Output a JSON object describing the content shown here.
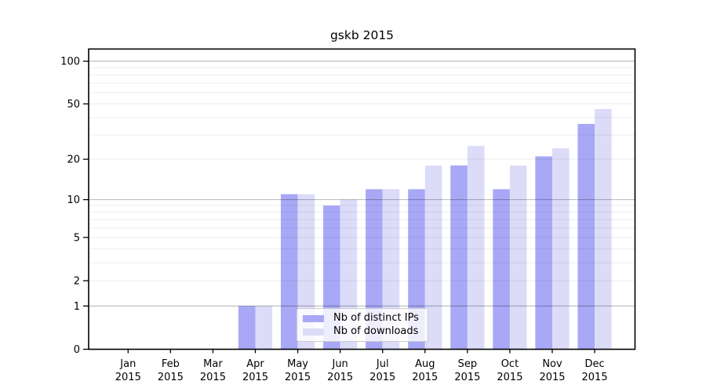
{
  "chart_data": {
    "type": "bar",
    "title": "gskb 2015",
    "categories": [
      "Jan",
      "Feb",
      "Mar",
      "Apr",
      "May",
      "Jun",
      "Jul",
      "Aug",
      "Sep",
      "Oct",
      "Nov",
      "Dec"
    ],
    "year_label": "2015",
    "series": [
      {
        "name": "Nb of distinct IPs",
        "color": "#a8a8f6",
        "values": [
          0,
          0,
          0,
          1,
          11,
          9,
          12,
          12,
          18,
          12,
          21,
          36
        ]
      },
      {
        "name": "Nb of downloads",
        "color": "#dcdcf9",
        "values": [
          0,
          0,
          0,
          1,
          11,
          10,
          12,
          18,
          25,
          18,
          24,
          46
        ]
      }
    ],
    "xlabel": "",
    "ylabel": "",
    "y_scale": "log10(1+v)",
    "y_ticks_labeled": [
      0,
      1,
      2,
      5,
      10,
      20,
      50,
      100
    ],
    "y_ticks_minor": [
      3,
      4,
      6,
      7,
      8,
      9,
      30,
      40,
      60,
      70,
      80,
      90
    ],
    "ylim": [
      0,
      122
    ],
    "grid": "horizontal, drawn above bars",
    "legend_position": "inside lower-center"
  },
  "colors": {
    "background": "#ffffff",
    "bar_distinct_ips": "#a8a8f6",
    "bar_downloads": "#dcdcf9",
    "grid_major": "rgba(0,0,0,0.28)",
    "grid_minor": "rgba(0,0,0,0.075)",
    "spine": "#000000",
    "text": "#000000"
  }
}
